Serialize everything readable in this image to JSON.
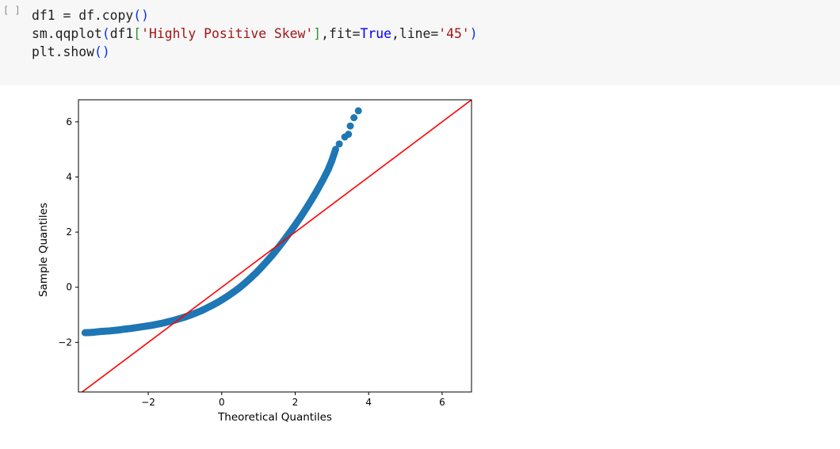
{
  "cell": {
    "prompt": "[ ]",
    "lines": [
      [
        {
          "text": "df1 = df.copy",
          "cls": ""
        },
        {
          "text": "()",
          "cls": "tok-br"
        }
      ],
      [
        {
          "text": "sm.qqplot",
          "cls": ""
        },
        {
          "text": "(",
          "cls": "tok-br"
        },
        {
          "text": "df1",
          "cls": ""
        },
        {
          "text": "[",
          "cls": "tok-br2"
        },
        {
          "text": "'Highly Positive Skew'",
          "cls": "tok-str"
        },
        {
          "text": "]",
          "cls": "tok-br2"
        },
        {
          "text": ",fit=",
          "cls": ""
        },
        {
          "text": "True",
          "cls": "tok-kw"
        },
        {
          "text": ",line=",
          "cls": ""
        },
        {
          "text": "'45'",
          "cls": "tok-str"
        },
        {
          "text": ")",
          "cls": "tok-br"
        }
      ],
      [
        {
          "text": "plt.show",
          "cls": ""
        },
        {
          "text": "()",
          "cls": "tok-br"
        }
      ]
    ]
  },
  "chart_data": {
    "type": "scatter",
    "xlabel": "Theoretical Quantiles",
    "ylabel": "Sample Quantiles",
    "xlim": [
      -3.9,
      6.8
    ],
    "ylim": [
      -3.8,
      6.8
    ],
    "xticks": [
      -2,
      0,
      2,
      4,
      6
    ],
    "yticks": [
      -2,
      0,
      2,
      4,
      6
    ],
    "xtick_labels": [
      "−2",
      "0",
      "2",
      "4",
      "6"
    ],
    "ytick_labels": [
      "−2",
      "0",
      "2",
      "4",
      "6"
    ],
    "grid": false,
    "point_color": "#1f77b4",
    "reference_line": {
      "type": "45-degree",
      "color": "#ff0000"
    },
    "points": [
      [
        -3.72,
        -1.65
      ],
      [
        -3.55,
        -1.64
      ],
      [
        -3.4,
        -1.62
      ],
      [
        -3.25,
        -1.6
      ],
      [
        -3.1,
        -1.59
      ],
      [
        -2.95,
        -1.57
      ],
      [
        -2.8,
        -1.55
      ],
      [
        -2.65,
        -1.52
      ],
      [
        -2.5,
        -1.5
      ],
      [
        -2.35,
        -1.47
      ],
      [
        -2.2,
        -1.44
      ],
      [
        -2.05,
        -1.41
      ],
      [
        -1.9,
        -1.38
      ],
      [
        -1.75,
        -1.34
      ],
      [
        -1.6,
        -1.3
      ],
      [
        -1.45,
        -1.25
      ],
      [
        -1.3,
        -1.2
      ],
      [
        -1.15,
        -1.14
      ],
      [
        -1.0,
        -1.08
      ],
      [
        -0.85,
        -1.01
      ],
      [
        -0.7,
        -0.93
      ],
      [
        -0.55,
        -0.85
      ],
      [
        -0.4,
        -0.75
      ],
      [
        -0.25,
        -0.65
      ],
      [
        -0.1,
        -0.54
      ],
      [
        0.05,
        -0.42
      ],
      [
        0.2,
        -0.29
      ],
      [
        0.35,
        -0.15
      ],
      [
        0.5,
        0.0
      ],
      [
        0.65,
        0.17
      ],
      [
        0.8,
        0.35
      ],
      [
        0.95,
        0.54
      ],
      [
        1.1,
        0.75
      ],
      [
        1.25,
        0.97
      ],
      [
        1.4,
        1.2
      ],
      [
        1.55,
        1.45
      ],
      [
        1.7,
        1.71
      ],
      [
        1.85,
        1.98
      ],
      [
        2.0,
        2.26
      ],
      [
        2.15,
        2.55
      ],
      [
        2.3,
        2.86
      ],
      [
        2.45,
        3.18
      ],
      [
        2.6,
        3.52
      ],
      [
        2.75,
        3.88
      ],
      [
        2.9,
        4.27
      ],
      [
        3.0,
        4.6
      ],
      [
        3.1,
        5.0
      ],
      [
        3.2,
        5.2
      ],
      [
        3.35,
        5.45
      ],
      [
        3.45,
        5.55
      ],
      [
        3.5,
        5.85
      ],
      [
        3.6,
        6.15
      ],
      [
        3.72,
        6.4
      ]
    ]
  }
}
